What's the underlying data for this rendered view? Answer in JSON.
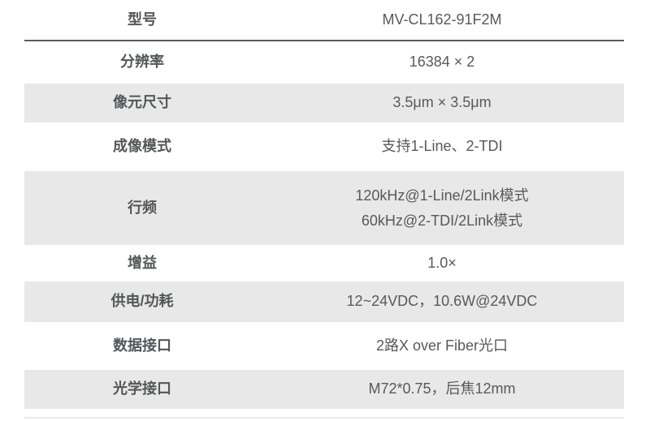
{
  "table": {
    "rows": [
      {
        "label": "型号",
        "value": "MV-CL162-91F2M"
      },
      {
        "label": "分辨率",
        "value": "16384 × 2"
      },
      {
        "label": "像元尺寸",
        "value": "3.5μm × 3.5μm"
      },
      {
        "label": "成像模式",
        "value": "支持1-Line、2-TDI"
      },
      {
        "label": "行频",
        "value_lines": [
          "120kHz@1-Line/2Link模式",
          "60kHz@2-TDI/2Link模式"
        ]
      },
      {
        "label": "增益",
        "value": "1.0×"
      },
      {
        "label": "供电/功耗",
        "value": "12~24VDC，10.6W@24VDC"
      },
      {
        "label": "数据接口",
        "value": "2路X over Fiber光口"
      },
      {
        "label": "光学接口",
        "value": "M72*0.75，后焦12mm"
      }
    ],
    "colors": {
      "striped_row_bg": "#e8e8e8",
      "header_divider": "#595a5c",
      "text": "#595959"
    }
  }
}
